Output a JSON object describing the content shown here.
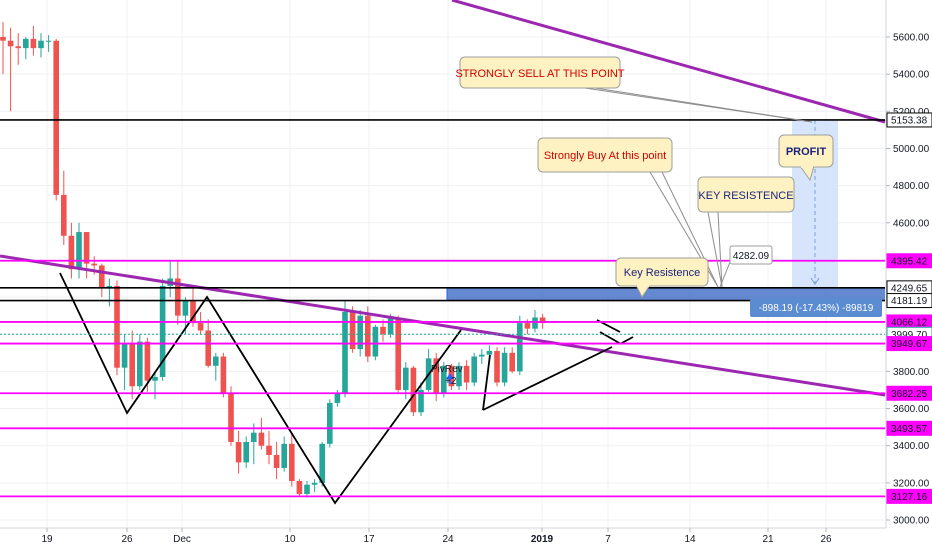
{
  "chart_data": {
    "type": "candlestick",
    "title": "",
    "xlabel": "",
    "ylabel": "",
    "ylim": [
      2990,
      5750
    ],
    "x_ticks": [
      "19",
      "26",
      "Dec",
      "10",
      "17",
      "24",
      "2019",
      "7",
      "14",
      "21",
      "26"
    ],
    "y_ticks": [
      3000,
      3200,
      3400,
      3600,
      3800,
      4000,
      4200,
      4400,
      4600,
      4800,
      5000,
      5200,
      5400,
      5600
    ],
    "y_tick_labels": [
      "3000.00",
      "3200.00",
      "3400.00",
      "3600.00",
      "3800.00",
      "4000.00",
      "4200.00",
      "4400.00",
      "4600.00",
      "4800.00",
      "5000.00",
      "5200.00",
      "5400.00",
      "5600.00"
    ],
    "grid": true,
    "colors": {
      "up": "#26a69a",
      "down": "#ef5350",
      "magenta_level": "#ff00ff",
      "black_level": "#000000",
      "trendline": "#9c27b0",
      "range_box": "#2962ff",
      "callout_bg": "#fff2c2",
      "callout_border": "#9e9e9e",
      "red_text": "#d50000",
      "blue_text": "#1a237e"
    },
    "candles": [
      {
        "o": 5600,
        "h": 5680,
        "l": 5400,
        "c": 5580
      },
      {
        "o": 5580,
        "h": 5650,
        "l": 5200,
        "c": 5550
      },
      {
        "o": 5550,
        "h": 5620,
        "l": 5450,
        "c": 5540
      },
      {
        "o": 5540,
        "h": 5600,
        "l": 5480,
        "c": 5590
      },
      {
        "o": 5590,
        "h": 5660,
        "l": 5500,
        "c": 5540
      },
      {
        "o": 5540,
        "h": 5620,
        "l": 5490,
        "c": 5580
      },
      {
        "o": 5580,
        "h": 5610,
        "l": 5520,
        "c": 5580
      },
      {
        "o": 5580,
        "h": 5590,
        "l": 4720,
        "c": 4750
      },
      {
        "o": 4750,
        "h": 4880,
        "l": 4480,
        "c": 4530
      },
      {
        "o": 4530,
        "h": 4600,
        "l": 4300,
        "c": 4350
      },
      {
        "o": 4350,
        "h": 4600,
        "l": 4300,
        "c": 4550
      },
      {
        "o": 4550,
        "h": 4550,
        "l": 4300,
        "c": 4380
      },
      {
        "o": 4380,
        "h": 4420,
        "l": 4320,
        "c": 4370
      },
      {
        "o": 4370,
        "h": 4380,
        "l": 4200,
        "c": 4250
      },
      {
        "o": 4250,
        "h": 4300,
        "l": 4150,
        "c": 4260
      },
      {
        "o": 4260,
        "h": 4290,
        "l": 3780,
        "c": 3820
      },
      {
        "o": 3820,
        "h": 4000,
        "l": 3700,
        "c": 3950
      },
      {
        "o": 3950,
        "h": 4020,
        "l": 3650,
        "c": 3720
      },
      {
        "o": 3720,
        "h": 4000,
        "l": 3700,
        "c": 3960
      },
      {
        "o": 3960,
        "h": 3980,
        "l": 3690,
        "c": 3750
      },
      {
        "o": 3750,
        "h": 3800,
        "l": 3650,
        "c": 3770
      },
      {
        "o": 3770,
        "h": 4300,
        "l": 3750,
        "c": 4260
      },
      {
        "o": 4260,
        "h": 4400,
        "l": 4200,
        "c": 4300
      },
      {
        "o": 4300,
        "h": 4400,
        "l": 4050,
        "c": 4100
      },
      {
        "o": 4100,
        "h": 4200,
        "l": 4000,
        "c": 4180
      },
      {
        "o": 4180,
        "h": 4250,
        "l": 4040,
        "c": 4060
      },
      {
        "o": 4060,
        "h": 4120,
        "l": 4000,
        "c": 4020
      },
      {
        "o": 4020,
        "h": 4080,
        "l": 3820,
        "c": 3830
      },
      {
        "o": 3830,
        "h": 3900,
        "l": 3750,
        "c": 3880
      },
      {
        "o": 3880,
        "h": 3900,
        "l": 3660,
        "c": 3680
      },
      {
        "o": 3680,
        "h": 3720,
        "l": 3400,
        "c": 3420
      },
      {
        "o": 3420,
        "h": 3480,
        "l": 3250,
        "c": 3310
      },
      {
        "o": 3310,
        "h": 3450,
        "l": 3280,
        "c": 3420
      },
      {
        "o": 3420,
        "h": 3520,
        "l": 3300,
        "c": 3470
      },
      {
        "o": 3470,
        "h": 3550,
        "l": 3380,
        "c": 3400
      },
      {
        "o": 3400,
        "h": 3480,
        "l": 3300,
        "c": 3350
      },
      {
        "o": 3350,
        "h": 3420,
        "l": 3220,
        "c": 3280
      },
      {
        "o": 3280,
        "h": 3450,
        "l": 3260,
        "c": 3410
      },
      {
        "o": 3410,
        "h": 3470,
        "l": 3180,
        "c": 3210
      },
      {
        "o": 3210,
        "h": 3220,
        "l": 3130,
        "c": 3140
      },
      {
        "o": 3140,
        "h": 3210,
        "l": 3120,
        "c": 3190
      },
      {
        "o": 3190,
        "h": 3220,
        "l": 3150,
        "c": 3200
      },
      {
        "o": 3200,
        "h": 3420,
        "l": 3180,
        "c": 3410
      },
      {
        "o": 3410,
        "h": 3650,
        "l": 3390,
        "c": 3630
      },
      {
        "o": 3630,
        "h": 3700,
        "l": 3610,
        "c": 3680
      },
      {
        "o": 3680,
        "h": 4180,
        "l": 3660,
        "c": 4120
      },
      {
        "o": 4120,
        "h": 4150,
        "l": 3900,
        "c": 3920
      },
      {
        "o": 3920,
        "h": 4130,
        "l": 3880,
        "c": 4100
      },
      {
        "o": 4100,
        "h": 4150,
        "l": 3850,
        "c": 3880
      },
      {
        "o": 3880,
        "h": 4050,
        "l": 3860,
        "c": 4040
      },
      {
        "o": 4040,
        "h": 4080,
        "l": 3960,
        "c": 4000
      },
      {
        "o": 4000,
        "h": 4110,
        "l": 3980,
        "c": 4090
      },
      {
        "o": 4090,
        "h": 4100,
        "l": 3680,
        "c": 3700
      },
      {
        "o": 3700,
        "h": 3850,
        "l": 3650,
        "c": 3820
      },
      {
        "o": 3820,
        "h": 3830,
        "l": 3560,
        "c": 3580
      },
      {
        "o": 3580,
        "h": 3740,
        "l": 3560,
        "c": 3700
      },
      {
        "o": 3700,
        "h": 3920,
        "l": 3690,
        "c": 3870
      },
      {
        "o": 3870,
        "h": 3900,
        "l": 3640,
        "c": 3680
      },
      {
        "o": 3680,
        "h": 3850,
        "l": 3660,
        "c": 3830
      },
      {
        "o": 3830,
        "h": 3840,
        "l": 3700,
        "c": 3720
      },
      {
        "o": 3720,
        "h": 3850,
        "l": 3700,
        "c": 3830
      },
      {
        "o": 3830,
        "h": 3860,
        "l": 3700,
        "c": 3740
      },
      {
        "o": 3740,
        "h": 3900,
        "l": 3720,
        "c": 3880
      },
      {
        "o": 3880,
        "h": 3920,
        "l": 3840,
        "c": 3890
      },
      {
        "o": 3890,
        "h": 3940,
        "l": 3860,
        "c": 3910
      },
      {
        "o": 3910,
        "h": 3930,
        "l": 3720,
        "c": 3740
      },
      {
        "o": 3740,
        "h": 3930,
        "l": 3720,
        "c": 3900
      },
      {
        "o": 3900,
        "h": 3930,
        "l": 3790,
        "c": 3800
      },
      {
        "o": 3800,
        "h": 4100,
        "l": 3780,
        "c": 4060
      },
      {
        "o": 4060,
        "h": 4080,
        "l": 4000,
        "c": 4030
      },
      {
        "o": 4030,
        "h": 4130,
        "l": 4010,
        "c": 4090
      },
      {
        "o": 4090,
        "h": 4110,
        "l": 4030,
        "c": 4060
      }
    ],
    "horizontal_levels": [
      {
        "price": 5153.38,
        "label": "5153.38",
        "color": "black"
      },
      {
        "price": 4395.42,
        "label": "4395.42",
        "color": "magenta"
      },
      {
        "price": 4249.65,
        "label": "4249.65",
        "color": "black"
      },
      {
        "price": 4181.19,
        "label": "4181.19",
        "color": "black"
      },
      {
        "price": 4066.12,
        "label": "4066.12",
        "color": "magenta"
      },
      {
        "price": 3999.7,
        "label": "3999.70",
        "color": "dotted"
      },
      {
        "price": 3949.67,
        "label": "3949.67",
        "color": "magenta"
      },
      {
        "price": 3682.25,
        "label": "3682.25",
        "color": "magenta"
      },
      {
        "price": 3493.57,
        "label": "3493.57",
        "color": "magenta"
      },
      {
        "price": 3127.16,
        "label": "3127.16",
        "color": "magenta"
      }
    ],
    "measure_label": "-898.19 (-17.43%) -89819",
    "small_label": "4282.09",
    "pivot_label": "PivRev",
    "pivot_sub": "+2"
  },
  "callouts": {
    "sell": "STRONGLY SELL AT THIS POINT",
    "buy": "Strongly Buy At this point",
    "key_resistance_upper": "KEY RESISTENCE",
    "key_resistance_lower": "Key Resistence",
    "profit": "PROFIT"
  }
}
